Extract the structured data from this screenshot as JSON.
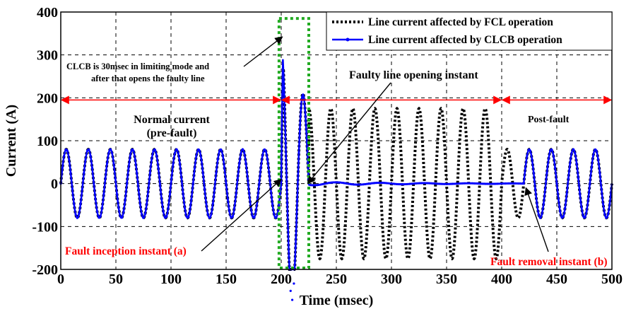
{
  "chart_data": {
    "type": "line",
    "title": "",
    "xlabel": "Time (msec)",
    "ylabel": "Current (A)",
    "xlim": [
      0,
      500
    ],
    "ylim": [
      -200,
      400
    ],
    "xticks": [
      0,
      50,
      100,
      150,
      200,
      250,
      300,
      350,
      400,
      450,
      500
    ],
    "yticks": [
      -200,
      -100,
      0,
      100,
      200,
      300,
      400
    ],
    "grid": true,
    "legend_position": "top-right",
    "frequency_hz": 50,
    "series": [
      {
        "name": "Line current affected by FCL operation",
        "style": "dotted",
        "color": "#000000",
        "segments": [
          {
            "x_range": [
              0,
              200
            ],
            "waveform": "sine",
            "amplitude": 80
          },
          {
            "x_range": [
              200,
              225
            ],
            "waveform": "fault transient",
            "peak": 345,
            "trough": -175
          },
          {
            "x_range": [
              225,
              400
            ],
            "waveform": "sine",
            "amplitude": 175
          },
          {
            "x_range": [
              400,
              500
            ],
            "waveform": "sine",
            "amplitude": 80
          }
        ]
      },
      {
        "name": "Line current affected by CLCB operation",
        "style": "solid",
        "color": "#0000ff",
        "segments": [
          {
            "x_range": [
              0,
              200
            ],
            "waveform": "sine",
            "amplitude": 80
          },
          {
            "x_range": [
              200,
              225
            ],
            "waveform": "fault transient",
            "peak": 335,
            "trough": -175
          },
          {
            "x_range": [
              225,
              420
            ],
            "waveform": "near zero",
            "amplitude": 4
          },
          {
            "x_range": [
              420,
              500
            ],
            "waveform": "sine",
            "amplitude": 80
          }
        ]
      }
    ],
    "annotations": [
      {
        "text": "CLCB is 30msec in limiting mode and",
        "x": 0,
        "y": 0
      },
      {
        "text": "after that opens the faulty line",
        "x": 0,
        "y": 0
      },
      {
        "text": "Faulty line opening instant"
      },
      {
        "text": "Normal current"
      },
      {
        "text": "(pre-fault)"
      },
      {
        "text": "Post-fault"
      },
      {
        "text": "Fault inception instant (a)"
      },
      {
        "text": "Fault removal instant (b)"
      }
    ],
    "highlight_window_x": [
      198,
      225
    ],
    "range_arrows": [
      [
        0,
        200
      ],
      [
        200,
        400
      ],
      [
        400,
        500
      ]
    ],
    "range_arrow_y": 195
  },
  "colors": {
    "fcl": "#000000",
    "clcb": "#0000ff",
    "arrow": "#ff0000",
    "fault_text": "#ff0000",
    "highlight_box": "#22aa22",
    "grid": "#000000"
  }
}
